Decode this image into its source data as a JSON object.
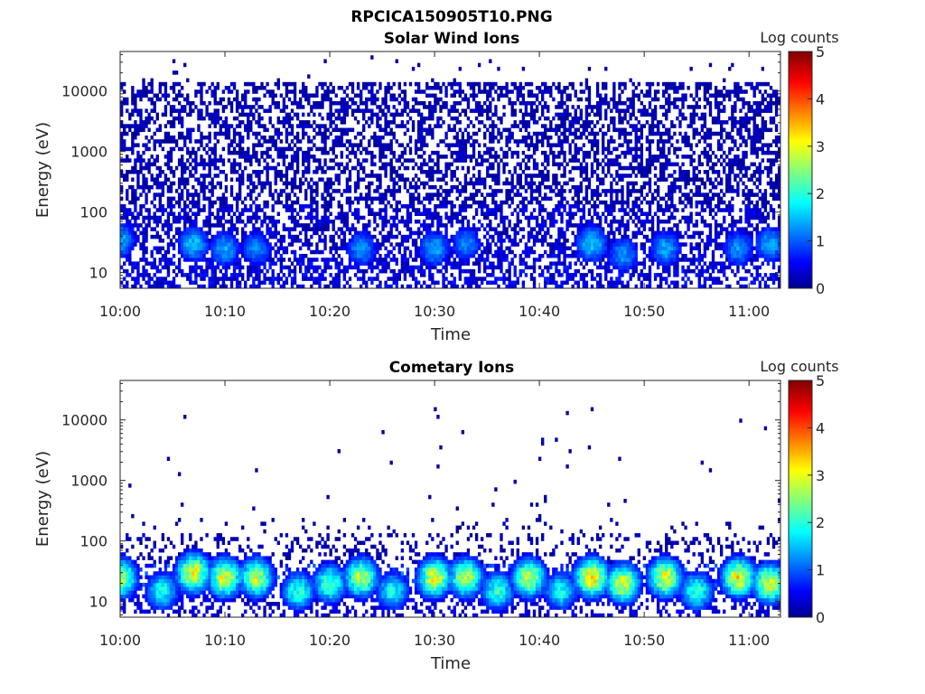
{
  "figure": {
    "title": "RPCICA150905T10.PNG"
  },
  "chart_data": [
    {
      "type": "heatmap",
      "title": "Solar Wind Ions",
      "xlabel": "Time",
      "ylabel": "Energy (eV)",
      "x_range": [
        "10:00",
        "11:03"
      ],
      "xticks": [
        "10:00",
        "10:10",
        "10:20",
        "10:30",
        "10:40",
        "10:50",
        "11:00"
      ],
      "yscale": "log",
      "ylim": [
        5.5,
        45000
      ],
      "yticks": [
        "10",
        "100",
        "1000",
        "10000"
      ],
      "colorbar": {
        "label": "Log counts",
        "range": [
          0,
          5
        ],
        "ticks": [
          "0",
          "1",
          "2",
          "3",
          "4",
          "5"
        ],
        "colormap": "jet"
      },
      "background": "#ffffff",
      "description_of_values": "Dense low-level counts (log ~0-0.5) scattered from 10 eV to ~15000 eV throughout; recurring brighter bursts near 20-40 eV",
      "bursts": [
        {
          "time": "10:00",
          "energy_eV": 35,
          "log_counts": 1.5
        },
        {
          "time": "10:07",
          "energy_eV": 30,
          "log_counts": 1.6
        },
        {
          "time": "10:10",
          "energy_eV": 25,
          "log_counts": 1.5
        },
        {
          "time": "10:13",
          "energy_eV": 25,
          "log_counts": 1.3
        },
        {
          "time": "10:23",
          "energy_eV": 25,
          "log_counts": 1.4
        },
        {
          "time": "10:30",
          "energy_eV": 25,
          "log_counts": 1.5
        },
        {
          "time": "10:33",
          "energy_eV": 30,
          "log_counts": 1.3
        },
        {
          "time": "10:45",
          "energy_eV": 30,
          "log_counts": 1.7
        },
        {
          "time": "10:48",
          "energy_eV": 20,
          "log_counts": 1.4
        },
        {
          "time": "10:52",
          "energy_eV": 25,
          "log_counts": 1.5
        },
        {
          "time": "10:59",
          "energy_eV": 25,
          "log_counts": 1.4
        },
        {
          "time": "11:02",
          "energy_eV": 30,
          "log_counts": 1.5
        }
      ]
    },
    {
      "type": "heatmap",
      "title": "Cometary Ions",
      "xlabel": "Time",
      "ylabel": "Energy (eV)",
      "x_range": [
        "10:00",
        "11:03"
      ],
      "xticks": [
        "10:00",
        "10:10",
        "10:20",
        "10:30",
        "10:40",
        "10:50",
        "11:00"
      ],
      "yscale": "log",
      "ylim": [
        5.5,
        45000
      ],
      "yticks": [
        "10",
        "100",
        "1000",
        "10000"
      ],
      "colorbar": {
        "label": "Log counts",
        "range": [
          0,
          5
        ],
        "ticks": [
          "0",
          "1",
          "2",
          "3",
          "4",
          "5"
        ],
        "colormap": "jet"
      },
      "background": "#ffffff",
      "description_of_values": "Sparse isolated counts above 200 eV; moderate counts 60-200 eV; strong recurring bursts (log ~2-3.5) at 10-40 eV",
      "bursts": [
        {
          "time": "10:00",
          "energy_eV": 25,
          "log_counts": 3.0
        },
        {
          "time": "10:04",
          "energy_eV": 15,
          "log_counts": 2.0
        },
        {
          "time": "10:07",
          "energy_eV": 30,
          "log_counts": 3.3
        },
        {
          "time": "10:10",
          "energy_eV": 25,
          "log_counts": 3.2
        },
        {
          "time": "10:13",
          "energy_eV": 25,
          "log_counts": 3.0
        },
        {
          "time": "10:17",
          "energy_eV": 15,
          "log_counts": 2.2
        },
        {
          "time": "10:20",
          "energy_eV": 20,
          "log_counts": 2.4
        },
        {
          "time": "10:23",
          "energy_eV": 25,
          "log_counts": 3.0
        },
        {
          "time": "10:26",
          "energy_eV": 15,
          "log_counts": 2.0
        },
        {
          "time": "10:30",
          "energy_eV": 25,
          "log_counts": 3.2
        },
        {
          "time": "10:33",
          "energy_eV": 25,
          "log_counts": 3.0
        },
        {
          "time": "10:36",
          "energy_eV": 15,
          "log_counts": 2.2
        },
        {
          "time": "10:39",
          "energy_eV": 25,
          "log_counts": 3.0
        },
        {
          "time": "10:42",
          "energy_eV": 15,
          "log_counts": 2.0
        },
        {
          "time": "10:45",
          "energy_eV": 25,
          "log_counts": 3.5
        },
        {
          "time": "10:48",
          "energy_eV": 20,
          "log_counts": 3.2
        },
        {
          "time": "10:52",
          "energy_eV": 25,
          "log_counts": 3.2
        },
        {
          "time": "10:55",
          "energy_eV": 15,
          "log_counts": 2.2
        },
        {
          "time": "10:59",
          "energy_eV": 25,
          "log_counts": 3.3
        },
        {
          "time": "11:02",
          "energy_eV": 20,
          "log_counts": 3.2
        }
      ]
    }
  ]
}
